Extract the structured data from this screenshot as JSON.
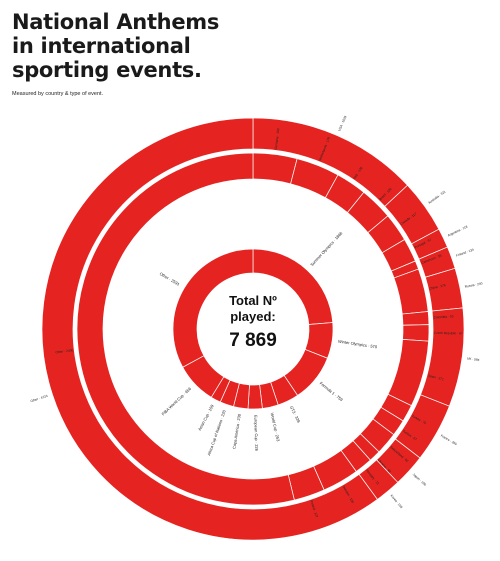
{
  "title_lines": [
    "National Anthems",
    "in international",
    "sporting events."
  ],
  "subtitle": "Measured by country & type of event.",
  "total_label_1": "Total Nº",
  "total_label_2": "played:",
  "total_value": "7 869",
  "colors": {
    "ring": "#e52421",
    "background": "#ffffff",
    "text": "#1a1a1a"
  },
  "chart_data": {
    "type": "donut",
    "title": "National Anthems in international sporting events.",
    "subtitle": "Measured by country & type of event.",
    "total": 7869,
    "rings": [
      {
        "name": "event type",
        "segments": [
          {
            "label": "Summer Olympics",
            "value": 1866
          },
          {
            "label": "Winter Olympics",
            "value": 570
          },
          {
            "label": "Formula 1",
            "value": 759
          },
          {
            "label": "GT3",
            "value": 339
          },
          {
            "label": "World Cup",
            "value": 253
          },
          {
            "label": "European Cup",
            "value": 226
          },
          {
            "label": "Copa América",
            "value": 230
          },
          {
            "label": "Africa Cup of Nations",
            "value": 220
          },
          {
            "label": "Asian Cup",
            "value": 159
          },
          {
            "label": "FIBA World Cup",
            "value": 656
          },
          {
            "label": "Other",
            "value": 2591
          }
        ]
      },
      {
        "name": "country, middle ring",
        "segments": [
          {
            "label": "Germany",
            "value": 180
          },
          {
            "label": "Netherlands",
            "value": 178
          },
          {
            "label": "Italy",
            "value": 126
          },
          {
            "label": "Brazil",
            "value": 136
          },
          {
            "label": "Canada",
            "value": 117
          },
          {
            "label": "Portugal",
            "value": 97
          },
          {
            "label": "Cameroon",
            "value": 35
          },
          {
            "label": "China",
            "value": 176
          },
          {
            "label": "Colombia",
            "value": 53
          },
          {
            "label": "Czech Republic",
            "value": 67
          },
          {
            "label": "Spain",
            "value": 271
          },
          {
            "label": "Turkey",
            "value": 70
          },
          {
            "label": "Tunisia",
            "value": 67
          },
          {
            "label": "Switzerland",
            "value": 92
          },
          {
            "label": "Ukraine",
            "value": 48
          },
          {
            "label": "Hungary",
            "value": 73
          },
          {
            "label": "Sweden",
            "value": 150
          },
          {
            "label": "Poland",
            "value": 127
          },
          {
            "label": "Other",
            "value": 2400
          }
        ]
      },
      {
        "name": "country, outer ring",
        "segments": [
          {
            "label": "USA",
            "value": 1029
          },
          {
            "label": "Australia",
            "value": 321
          },
          {
            "label": "Argentina",
            "value": 118
          },
          {
            "label": "Finland",
            "value": 134
          },
          {
            "label": "Russia",
            "value": 240
          },
          {
            "label": "UK",
            "value": 594
          },
          {
            "label": "France",
            "value": 355
          },
          {
            "label": "Japan",
            "value": 196
          },
          {
            "label": "Korea",
            "value": 158
          },
          {
            "label": "Other",
            "value": 4724
          }
        ]
      }
    ]
  }
}
